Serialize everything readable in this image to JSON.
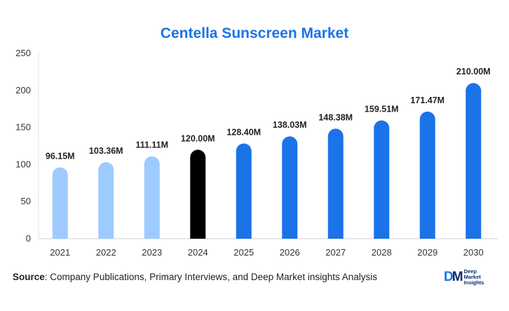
{
  "chart_data": {
    "type": "bar",
    "title": "Centella Sunscreen Market",
    "categories": [
      "2021",
      "2022",
      "2023",
      "2024",
      "2025",
      "2026",
      "2027",
      "2028",
      "2029",
      "2030"
    ],
    "values": [
      96.15,
      103.36,
      111.11,
      120.0,
      128.4,
      138.03,
      148.38,
      159.51,
      171.47,
      210.0
    ],
    "data_labels": [
      "96.15M",
      "103.36M",
      "111.11M",
      "120.00M",
      "128.40M",
      "138.03M",
      "148.38M",
      "159.51M",
      "171.47M",
      "210.00M"
    ],
    "ylim": [
      0,
      250
    ],
    "yticks": [
      0,
      50,
      100,
      150,
      200,
      250
    ],
    "xlabel": "",
    "ylabel": "",
    "grid": false,
    "colors": {
      "past": "#9ecbff",
      "current": "#000000",
      "forecast": "#1a73e8"
    },
    "bar_color_groups": [
      "past",
      "past",
      "past",
      "current",
      "forecast",
      "forecast",
      "forecast",
      "forecast",
      "forecast",
      "forecast"
    ]
  },
  "footer": {
    "source_label": "Source",
    "source_text": ": Company Publications, Primary Interviews, and Deep Market insights Analysis"
  },
  "logo": {
    "mark_d": "D",
    "mark_m": "M",
    "line1": "Deep",
    "line2": "Market",
    "line3": "Insights"
  }
}
